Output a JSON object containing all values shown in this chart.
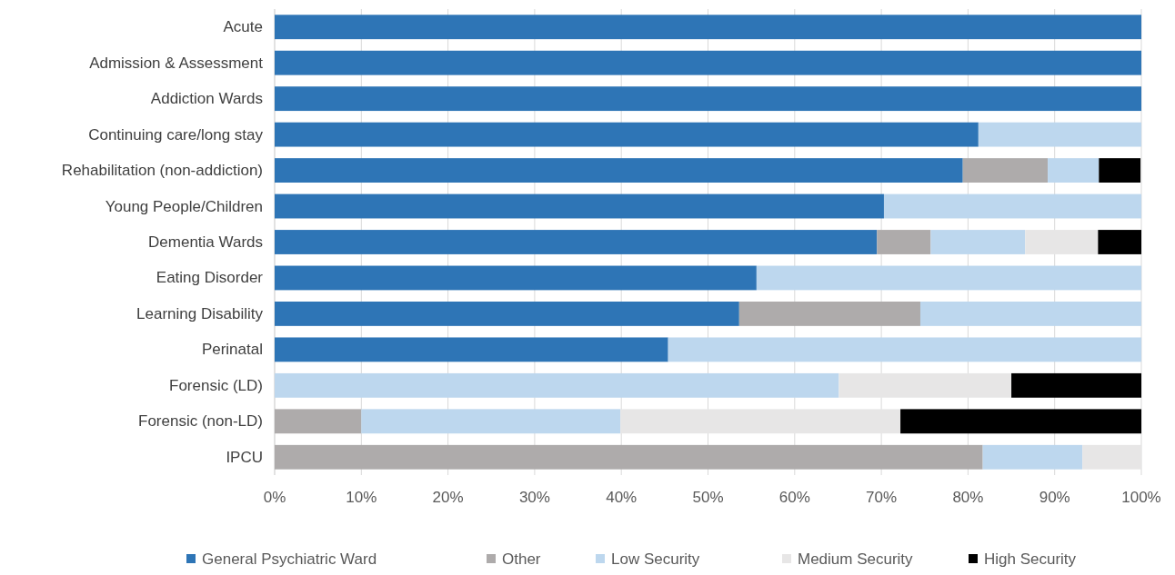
{
  "chart_data": {
    "type": "bar",
    "orientation": "horizontal",
    "stacked": true,
    "categories": [
      "Acute",
      "Admission & Assessment",
      "Addiction Wards",
      "Continuing care/long stay",
      "Rehabilitation (non-addiction)",
      "Young People/Children",
      "Dementia Wards",
      "Eating Disorder",
      "Learning Disability",
      "Perinatal",
      "Forensic (LD)",
      "Forensic (non-LD)",
      "IPCU"
    ],
    "series": [
      {
        "name": "General Psychiatric Ward",
        "color": "#2e75b6",
        "values": [
          100,
          100,
          100,
          81.2,
          79.4,
          70.3,
          69.5,
          55.6,
          53.6,
          45.4,
          0,
          0,
          0
        ]
      },
      {
        "name": "Other",
        "color": "#aeabab",
        "values": [
          0,
          0,
          0,
          0,
          9.8,
          0,
          6.2,
          0,
          20.9,
          0,
          0,
          10.0,
          81.7
        ]
      },
      {
        "name": "Low Security",
        "color": "#bdd7ee",
        "values": [
          0,
          0,
          0,
          18.8,
          5.9,
          29.7,
          10.9,
          44.4,
          25.5,
          54.6,
          65.1,
          29.9,
          11.5
        ]
      },
      {
        "name": "Medium Security",
        "color": "#e7e6e6",
        "values": [
          0,
          0,
          0,
          0,
          0,
          0,
          8.4,
          0,
          0,
          0,
          19.9,
          32.3,
          6.8
        ]
      },
      {
        "name": "High Security",
        "color": "#000000",
        "values": [
          0,
          0,
          0,
          0,
          4.8,
          0,
          5.0,
          0,
          0,
          0,
          15.0,
          27.8,
          0
        ]
      }
    ],
    "xlim": [
      0,
      100
    ],
    "xticks": [
      {
        "value": 0,
        "label": "0%"
      },
      {
        "value": 10,
        "label": "10%"
      },
      {
        "value": 20,
        "label": "20%"
      },
      {
        "value": 30,
        "label": "30%"
      },
      {
        "value": 40,
        "label": "40%"
      },
      {
        "value": 50,
        "label": "50%"
      },
      {
        "value": 60,
        "label": "60%"
      },
      {
        "value": 70,
        "label": "70%"
      },
      {
        "value": 80,
        "label": "80%"
      },
      {
        "value": 90,
        "label": "90%"
      },
      {
        "value": 100,
        "label": "100%"
      }
    ],
    "grid": "x",
    "legend": "bottom"
  }
}
